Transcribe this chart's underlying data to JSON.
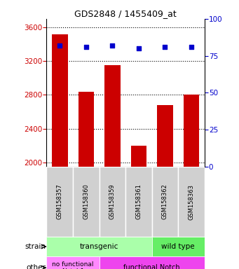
{
  "title": "GDS2848 / 1455409_at",
  "categories": [
    "GSM158357",
    "GSM158360",
    "GSM158359",
    "GSM158361",
    "GSM158362",
    "GSM158363"
  ],
  "bar_values": [
    3520,
    2840,
    3150,
    2200,
    2680,
    2800
  ],
  "percentile_values": [
    82,
    81,
    82,
    80,
    81,
    81
  ],
  "ylim_left": [
    1950,
    3700
  ],
  "ylim_right": [
    0,
    100
  ],
  "yticks_left": [
    2000,
    2400,
    2800,
    3200,
    3600
  ],
  "yticks_right": [
    0,
    25,
    50,
    75,
    100
  ],
  "bar_color": "#cc0000",
  "dot_color": "#0000cc",
  "bar_width": 0.6,
  "background_color": "#ffffff",
  "transgenic_color": "#aaffaa",
  "wildtype_color": "#66ee66",
  "nofunc_color": "#ff88ff",
  "func_color": "#ee44ee",
  "xlabel_color": "#cc0000",
  "ylabel_right_color": "#0000cc"
}
